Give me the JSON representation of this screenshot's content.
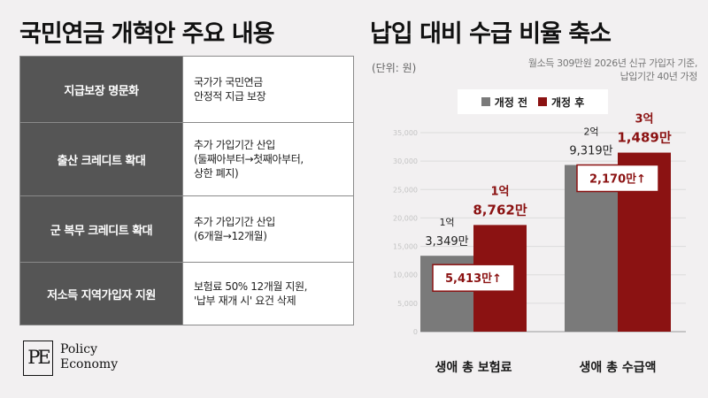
{
  "left_title": "국민연금 개혁안 주요 내용",
  "right_title": "납입 대비 수급 비율 축소",
  "reform_items": [
    {
      "label": "지급보장 명문화",
      "desc": "국가가 국민연금\n안정적 지급 보장"
    },
    {
      "label": "출산 크레디트 확대",
      "desc": "추가 가입기간 산입\n(둘째아부터→첫째아부터,\n상한 폐지)"
    },
    {
      "label": "군 복무 크레디트 확대",
      "desc": "추가 가입기간 산입\n(6개월→12개월)"
    },
    {
      "label": "저소득 지역가입자 지원",
      "desc": "보험료 50% 12개월 지원,\n'납부 재개 시' 요건 삭제"
    }
  ],
  "logo": {
    "mark": "PE",
    "line1": "Policy",
    "line2": "Economy"
  },
  "unit": "(단위: 원)",
  "note": [
    "월소득 309만원 2026년 신규 가입자 기준,",
    "납입기간 40년 가정"
  ],
  "colors": {
    "before": "#7a7a7a",
    "after": "#8b1212",
    "label_after": "#8b1212"
  },
  "chart_data": {
    "type": "bar",
    "categories": [
      "생애 총 보험료",
      "생애 총 수급액"
    ],
    "series": [
      {
        "name": "개정 전",
        "values": [
          13349,
          29319
        ],
        "labels": [
          [
            "1억",
            "3,349만"
          ],
          [
            "2억",
            "9,319만"
          ]
        ]
      },
      {
        "name": "개정 후",
        "values": [
          18762,
          31489
        ],
        "labels": [
          [
            "1억",
            "8,762만"
          ],
          [
            "3억",
            "1,489만"
          ]
        ]
      }
    ],
    "differences": [
      "5,413만↑",
      "2,170만↑"
    ],
    "y_ticks": [
      "0",
      "5,000",
      "10,000",
      "15,000",
      "20,000",
      "25,000",
      "30,000",
      "35,000"
    ],
    "ylim": [
      0,
      35000
    ],
    "legend_position": "top",
    "grid": true
  }
}
